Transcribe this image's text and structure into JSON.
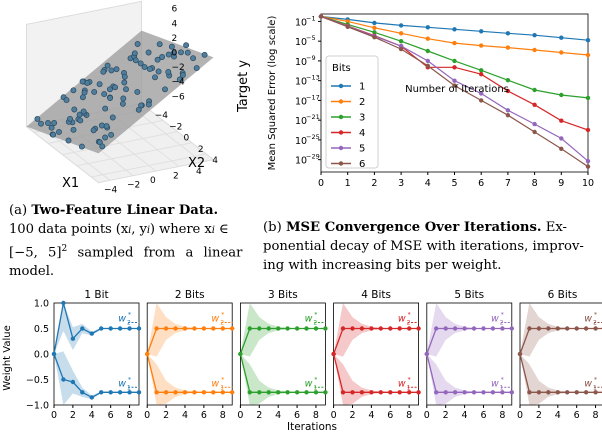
{
  "figure_a": {
    "axis_labels": {
      "x": "X1",
      "y": "X2",
      "z": "Target y"
    },
    "x_ticks": [
      "−4",
      "−2",
      "0",
      "2",
      "4"
    ],
    "y_ticks": [
      "−4",
      "−2",
      "0",
      "2",
      "4"
    ],
    "z_ticks": [
      "6",
      "4",
      "2",
      "0",
      "−2",
      "−4",
      "−6"
    ],
    "caption": {
      "label": "(a)",
      "title": "Two-Feature Linear Data.",
      "line1_rest": "",
      "line2": "100 data points (x",
      "line2_i": "i",
      "line2_mid": ", y",
      "line2_end": ") where x",
      "line2_tail": " ∈",
      "line3": "[−5, 5]",
      "line3_sup": "2",
      "line3_rest": " sampled from a linear",
      "line4": "model."
    },
    "colors": {
      "plane": "#9a9a9a",
      "points": "#4f7d9c"
    }
  },
  "figure_b": {
    "caption": {
      "label": "(b)",
      "title": "MSE Convergence Over Iterations.",
      "line1_rest": " Ex-",
      "line2": "ponential decay of MSE with iterations, improv-",
      "line3": "ing with increasing bits per weight."
    }
  },
  "figure_c": {
    "ylabel": "Weight Value",
    "xlabel": "Iterations",
    "y_ticks": [
      "1.0",
      "0.5",
      "0.0",
      "−0.5",
      "−1.0"
    ],
    "x_ticks": [
      "0",
      "2",
      "4",
      "6",
      "8"
    ],
    "legend_w2": "w",
    "legend_w2_sub": "2",
    "legend_w2_sup": "*",
    "legend_w1": "w",
    "legend_w1_sub": "1",
    "legend_w1_sup": "*"
  },
  "chart_data": [
    {
      "type": "line",
      "title": "",
      "xlabel": "Number of Iterations",
      "ylabel": "Mean Squared Error (log scale)",
      "y_scale": "log",
      "x": [
        0,
        1,
        2,
        3,
        4,
        5,
        6,
        7,
        8,
        9,
        10
      ],
      "x_ticks": [
        "0",
        "1",
        "2",
        "3",
        "4",
        "5",
        "6",
        "7",
        "8",
        "9",
        "10"
      ],
      "y_ticks": [
        "10",
        "10",
        "10",
        "10",
        "10",
        "10",
        "10",
        "10"
      ],
      "y_tick_exponents": [
        "−1",
        "−5",
        "−9",
        "−13",
        "−17",
        "−21",
        "−25",
        "−29"
      ],
      "ylim_log10": [
        -31.5,
        0.5
      ],
      "legend_title": "Bits",
      "legend_position": "center-left",
      "grid": true,
      "series": [
        {
          "name": "1",
          "color": "#1f77b4",
          "log10_values": [
            0,
            -0.6,
            -1.3,
            -1.8,
            -2.2,
            -2.6,
            -3.0,
            -3.4,
            -3.8,
            -4.3,
            -4.8
          ]
        },
        {
          "name": "2",
          "color": "#ff7f0e",
          "log10_values": [
            0,
            -1.0,
            -2.3,
            -3.4,
            -4.5,
            -5.4,
            -5.9,
            -6.3,
            -6.8,
            -7.3,
            -7.8
          ]
        },
        {
          "name": "3",
          "color": "#2ca02c",
          "log10_values": [
            0,
            -1.6,
            -3.2,
            -5.0,
            -7.0,
            -9.0,
            -10.9,
            -12.9,
            -14.9,
            -15.9,
            -16.5
          ]
        },
        {
          "name": "4",
          "color": "#d62728",
          "log10_values": [
            0,
            -1.9,
            -3.9,
            -6.0,
            -10.3,
            -10.3,
            -11.7,
            -15.1,
            -17.9,
            -21.1,
            -23.0
          ]
        },
        {
          "name": "5",
          "color": "#9467bd",
          "log10_values": [
            0,
            -2.0,
            -4.0,
            -6.0,
            -9.0,
            -13.0,
            -15.6,
            -19.0,
            -21.8,
            -24.7,
            -29.3
          ]
        },
        {
          "name": "6",
          "color": "#8c564b",
          "log10_values": [
            0,
            -2.1,
            -4.2,
            -6.6,
            -10.0,
            -14.0,
            -17.0,
            -20.0,
            -23.4,
            -26.8,
            -30.4
          ]
        }
      ]
    },
    {
      "type": "line",
      "xlabel": "Iterations",
      "ylabel": "Weight Value",
      "ylim": [
        -1.0,
        1.0
      ],
      "xlim": [
        0,
        9
      ],
      "x": [
        0,
        1,
        2,
        3,
        4,
        5,
        6,
        7,
        8,
        9
      ],
      "panels": [
        {
          "title": "1 Bit",
          "color": "#1f77b4",
          "w2": [
            0,
            1.0,
            0.3,
            0.5,
            0.4,
            0.5,
            0.5,
            0.5,
            0.5,
            0.5
          ],
          "w1": [
            0,
            -0.5,
            -0.55,
            -0.75,
            -0.85,
            -0.75,
            -0.75,
            -0.75,
            -0.75,
            -0.75
          ]
        },
        {
          "title": "2 Bits",
          "color": "#ff7f0e",
          "w2": [
            0,
            0.5,
            0.5,
            0.5,
            0.5,
            0.5,
            0.5,
            0.5,
            0.5,
            0.5
          ],
          "w1": [
            0,
            -0.75,
            -0.75,
            -0.75,
            -0.75,
            -0.75,
            -0.75,
            -0.75,
            -0.75,
            -0.75
          ]
        },
        {
          "title": "3 Bits",
          "color": "#2ca02c",
          "w2": [
            0,
            0.5,
            0.5,
            0.5,
            0.5,
            0.5,
            0.5,
            0.5,
            0.5,
            0.5
          ],
          "w1": [
            0,
            -0.75,
            -0.75,
            -0.75,
            -0.75,
            -0.75,
            -0.75,
            -0.75,
            -0.75,
            -0.75
          ]
        },
        {
          "title": "4 Bits",
          "color": "#d62728",
          "w2": [
            0,
            0.5,
            0.5,
            0.5,
            0.5,
            0.5,
            0.5,
            0.5,
            0.5,
            0.5
          ],
          "w1": [
            0,
            -0.75,
            -0.75,
            -0.75,
            -0.75,
            -0.75,
            -0.75,
            -0.75,
            -0.75,
            -0.75
          ]
        },
        {
          "title": "5 Bits",
          "color": "#9467bd",
          "w2": [
            0,
            0.5,
            0.5,
            0.5,
            0.5,
            0.5,
            0.5,
            0.5,
            0.5,
            0.5
          ],
          "w1": [
            0,
            -0.75,
            -0.75,
            -0.75,
            -0.75,
            -0.75,
            -0.75,
            -0.75,
            -0.75,
            -0.75
          ]
        },
        {
          "title": "6 Bits",
          "color": "#8c564b",
          "w2": [
            0,
            0.5,
            0.5,
            0.5,
            0.5,
            0.5,
            0.5,
            0.5,
            0.5,
            0.5
          ],
          "w1": [
            0,
            -0.75,
            -0.75,
            -0.75,
            -0.75,
            -0.75,
            -0.75,
            -0.75,
            -0.75,
            -0.75
          ]
        }
      ]
    }
  ]
}
